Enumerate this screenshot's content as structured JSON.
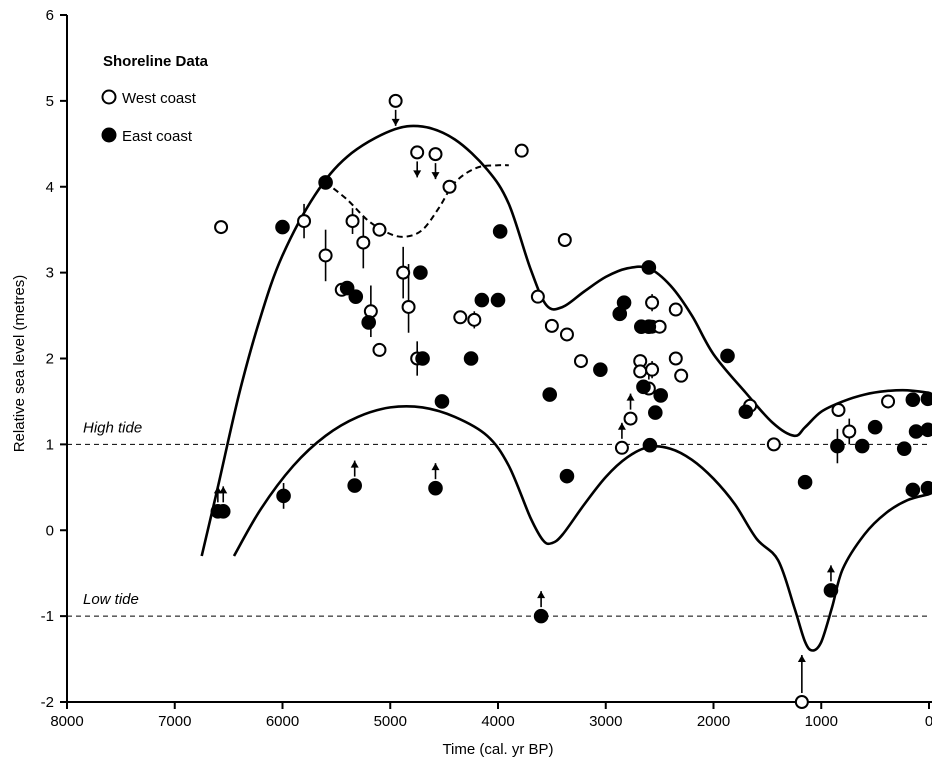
{
  "chart_data": {
    "type": "scatter",
    "xlabel": "Time (cal. yr BP)",
    "ylabel": "Relative sea level (metres)",
    "xlim": [
      8000,
      0
    ],
    "ylim": [
      -2,
      6
    ],
    "x_reversed": true,
    "x_ticks": [
      8000,
      7000,
      6000,
      5000,
      4000,
      3000,
      2000,
      1000,
      0
    ],
    "x_tick_labels": [
      "8000",
      "7000",
      "6000",
      "5000",
      "4000",
      "3000",
      "2000",
      "1000",
      "0"
    ],
    "y_ticks": [
      -2,
      -1,
      0,
      1,
      2,
      3,
      4,
      5,
      6
    ],
    "y_tick_labels": [
      "-2",
      "-1",
      "0",
      "1",
      "2",
      "3",
      "4",
      "5",
      "6"
    ],
    "grid": false,
    "legend": {
      "title": "Shoreline Data",
      "position": "top-left",
      "entries": [
        {
          "name": "West coast",
          "marker": "open-circle"
        },
        {
          "name": "East coast",
          "marker": "filled-circle"
        }
      ]
    },
    "reference_lines": [
      {
        "y": 1,
        "label": "High tide",
        "style": "dashed"
      },
      {
        "y": -1,
        "label": "Low tide",
        "style": "dashed"
      }
    ],
    "series": [
      {
        "name": "West coast",
        "marker": "open-circle",
        "points": [
          {
            "x": 6570,
            "y": 3.53
          },
          {
            "x": 5800,
            "y": 3.6,
            "err_up": 0.2,
            "err_down": 0.2
          },
          {
            "x": 5600,
            "y": 3.2,
            "err_up": 0.3,
            "err_down": 0.3
          },
          {
            "x": 5450,
            "y": 2.8
          },
          {
            "x": 5350,
            "y": 3.6,
            "err_up": 0.15,
            "err_down": 0.15
          },
          {
            "x": 5250,
            "y": 3.35,
            "err_up": 0.3,
            "err_down": 0.3
          },
          {
            "x": 5180,
            "y": 2.55,
            "err_up": 0.3,
            "err_down": 0.3
          },
          {
            "x": 5100,
            "y": 3.5
          },
          {
            "x": 5100,
            "y": 2.1
          },
          {
            "x": 4950,
            "y": 5.0,
            "arrow": "down"
          },
          {
            "x": 4880,
            "y": 3.0,
            "err_up": 0.3,
            "err_down": 0.3
          },
          {
            "x": 4830,
            "y": 2.6,
            "err_up": 0.5,
            "err_down": 0.3
          },
          {
            "x": 4750,
            "y": 4.4,
            "arrow": "down"
          },
          {
            "x": 4750,
            "y": 2.0,
            "err_up": 0.2,
            "err_down": 0.2
          },
          {
            "x": 4580,
            "y": 4.38,
            "arrow": "down"
          },
          {
            "x": 4450,
            "y": 4.0
          },
          {
            "x": 4350,
            "y": 2.48
          },
          {
            "x": 4220,
            "y": 2.45,
            "err_up": 0.1,
            "err_down": 0.1
          },
          {
            "x": 3780,
            "y": 4.42
          },
          {
            "x": 3630,
            "y": 2.72
          },
          {
            "x": 3500,
            "y": 2.38
          },
          {
            "x": 3380,
            "y": 3.38
          },
          {
            "x": 3360,
            "y": 2.28
          },
          {
            "x": 3230,
            "y": 1.97
          },
          {
            "x": 2850,
            "y": 0.96,
            "arrow": "up"
          },
          {
            "x": 2770,
            "y": 1.3,
            "arrow": "up"
          },
          {
            "x": 2680,
            "y": 1.97
          },
          {
            "x": 2680,
            "y": 1.85
          },
          {
            "x": 2600,
            "y": 1.65,
            "arrow": "up"
          },
          {
            "x": 2570,
            "y": 2.65,
            "err_up": 0.1,
            "err_down": 0.1
          },
          {
            "x": 2570,
            "y": 2.37
          },
          {
            "x": 2570,
            "y": 1.87,
            "err_up": 0.1,
            "err_down": 0.1
          },
          {
            "x": 2500,
            "y": 2.37
          },
          {
            "x": 2350,
            "y": 2.57
          },
          {
            "x": 2350,
            "y": 2.0
          },
          {
            "x": 2300,
            "y": 1.8
          },
          {
            "x": 1660,
            "y": 1.45
          },
          {
            "x": 1440,
            "y": 1.0
          },
          {
            "x": 1180,
            "y": -2.0,
            "arrow": "up"
          },
          {
            "x": 840,
            "y": 1.4
          },
          {
            "x": 740,
            "y": 1.15,
            "err_up": 0.15,
            "err_down": 0.15
          },
          {
            "x": 380,
            "y": 1.5
          }
        ]
      },
      {
        "name": "East coast",
        "marker": "filled-circle",
        "points": [
          {
            "x": 6600,
            "y": 0.22,
            "arrow": "up"
          },
          {
            "x": 6550,
            "y": 0.22,
            "arrow": "up"
          },
          {
            "x": 6000,
            "y": 3.53
          },
          {
            "x": 5990,
            "y": 0.4,
            "err_up": 0.15,
            "err_down": 0.15
          },
          {
            "x": 5600,
            "y": 4.05
          },
          {
            "x": 5400,
            "y": 2.82
          },
          {
            "x": 5320,
            "y": 2.72
          },
          {
            "x": 5330,
            "y": 0.52,
            "arrow": "up"
          },
          {
            "x": 5200,
            "y": 2.42
          },
          {
            "x": 4720,
            "y": 3.0
          },
          {
            "x": 4700,
            "y": 2.0
          },
          {
            "x": 4580,
            "y": 0.49,
            "arrow": "up"
          },
          {
            "x": 4520,
            "y": 1.5
          },
          {
            "x": 4250,
            "y": 2.0
          },
          {
            "x": 4150,
            "y": 2.68
          },
          {
            "x": 4000,
            "y": 2.68
          },
          {
            "x": 3980,
            "y": 3.48
          },
          {
            "x": 3600,
            "y": -1.0,
            "arrow": "up"
          },
          {
            "x": 3520,
            "y": 1.58
          },
          {
            "x": 3360,
            "y": 0.63
          },
          {
            "x": 3050,
            "y": 1.87
          },
          {
            "x": 2870,
            "y": 2.52
          },
          {
            "x": 2830,
            "y": 2.65
          },
          {
            "x": 2670,
            "y": 2.37
          },
          {
            "x": 2650,
            "y": 1.67
          },
          {
            "x": 2600,
            "y": 3.06
          },
          {
            "x": 2600,
            "y": 2.37
          },
          {
            "x": 2590,
            "y": 0.99
          },
          {
            "x": 2540,
            "y": 1.37
          },
          {
            "x": 2490,
            "y": 1.57
          },
          {
            "x": 1870,
            "y": 2.03
          },
          {
            "x": 1700,
            "y": 1.38
          },
          {
            "x": 1150,
            "y": 0.56
          },
          {
            "x": 910,
            "y": -0.7,
            "arrow": "up"
          },
          {
            "x": 850,
            "y": 0.98,
            "err_up": 0.2,
            "err_down": 0.2
          },
          {
            "x": 620,
            "y": 0.98
          },
          {
            "x": 500,
            "y": 1.2
          },
          {
            "x": 230,
            "y": 0.95
          },
          {
            "x": 150,
            "y": 1.52
          },
          {
            "x": 150,
            "y": 0.47
          },
          {
            "x": 120,
            "y": 1.15
          },
          {
            "x": 10,
            "y": 1.53
          },
          {
            "x": 10,
            "y": 1.17
          },
          {
            "x": 10,
            "y": 0.49
          }
        ]
      }
    ],
    "curves": [
      {
        "role": "upper envelope",
        "style": "solid",
        "points": [
          [
            6750,
            -0.3
          ],
          [
            6600,
            0.5
          ],
          [
            6400,
            1.6
          ],
          [
            6200,
            2.5
          ],
          [
            6000,
            3.2
          ],
          [
            5700,
            3.9
          ],
          [
            5400,
            4.35
          ],
          [
            5000,
            4.65
          ],
          [
            4700,
            4.7
          ],
          [
            4400,
            4.55
          ],
          [
            4100,
            4.2
          ],
          [
            3900,
            3.8
          ],
          [
            3700,
            3.05
          ],
          [
            3550,
            2.62
          ],
          [
            3400,
            2.6
          ],
          [
            3200,
            2.78
          ],
          [
            3000,
            2.95
          ],
          [
            2800,
            3.05
          ],
          [
            2600,
            3.05
          ],
          [
            2400,
            2.85
          ],
          [
            2200,
            2.5
          ],
          [
            2000,
            2.05
          ],
          [
            1700,
            1.6
          ],
          [
            1450,
            1.25
          ],
          [
            1250,
            1.1
          ],
          [
            1150,
            1.2
          ],
          [
            1000,
            1.38
          ],
          [
            800,
            1.5
          ],
          [
            600,
            1.58
          ],
          [
            400,
            1.62
          ],
          [
            200,
            1.63
          ],
          [
            0,
            1.6
          ]
        ]
      },
      {
        "role": "lower envelope",
        "style": "solid",
        "points": [
          [
            6450,
            -0.3
          ],
          [
            6200,
            0.25
          ],
          [
            5900,
            0.75
          ],
          [
            5600,
            1.1
          ],
          [
            5300,
            1.32
          ],
          [
            5000,
            1.43
          ],
          [
            4700,
            1.43
          ],
          [
            4400,
            1.32
          ],
          [
            4100,
            1.1
          ],
          [
            3900,
            0.75
          ],
          [
            3700,
            0.15
          ],
          [
            3580,
            -0.12
          ],
          [
            3500,
            -0.15
          ],
          [
            3400,
            -0.05
          ],
          [
            3200,
            0.3
          ],
          [
            3000,
            0.62
          ],
          [
            2800,
            0.85
          ],
          [
            2600,
            0.97
          ],
          [
            2400,
            0.95
          ],
          [
            2200,
            0.82
          ],
          [
            2000,
            0.6
          ],
          [
            1800,
            0.3
          ],
          [
            1600,
            -0.1
          ],
          [
            1400,
            -0.35
          ],
          [
            1250,
            -0.9
          ],
          [
            1150,
            -1.3
          ],
          [
            1080,
            -1.4
          ],
          [
            1000,
            -1.3
          ],
          [
            900,
            -0.9
          ],
          [
            800,
            -0.45
          ],
          [
            600,
            -0.05
          ],
          [
            400,
            0.2
          ],
          [
            200,
            0.35
          ],
          [
            0,
            0.42
          ]
        ]
      },
      {
        "role": "alternative upper envelope",
        "style": "dashed",
        "points": [
          [
            5600,
            4.05
          ],
          [
            5400,
            3.85
          ],
          [
            5200,
            3.6
          ],
          [
            5000,
            3.45
          ],
          [
            4850,
            3.42
          ],
          [
            4700,
            3.5
          ],
          [
            4550,
            3.75
          ],
          [
            4400,
            4.05
          ],
          [
            4200,
            4.22
          ],
          [
            4000,
            4.25
          ],
          [
            3900,
            4.25
          ]
        ]
      }
    ]
  }
}
